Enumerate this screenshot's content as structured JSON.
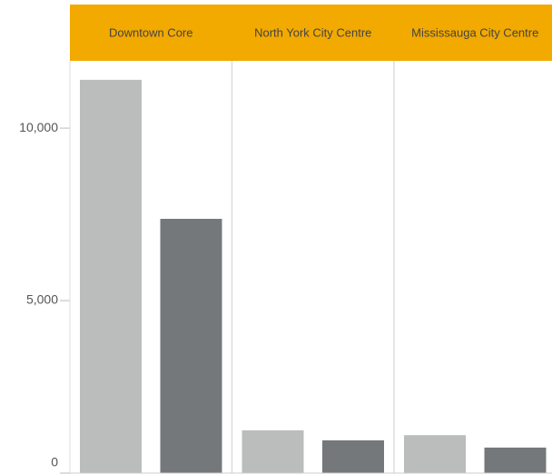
{
  "chart_data": {
    "type": "bar",
    "categories": [
      "Downtown Core",
      "North York City Centre",
      "Mississauga City Centre"
    ],
    "series": [
      {
        "color": "#bbbcbc",
        "values": [
          11400,
          1240,
          1100
        ]
      },
      {
        "color": "#75787b",
        "values": [
          7370,
          950,
          740
        ]
      }
    ],
    "header_color": "#f2a900",
    "ylim": [
      0,
      11950
    ],
    "yticks": [
      0,
      {
        "value": 5000,
        "label": "5,000"
      },
      {
        "value": 10000,
        "label": "10,000"
      }
    ]
  }
}
